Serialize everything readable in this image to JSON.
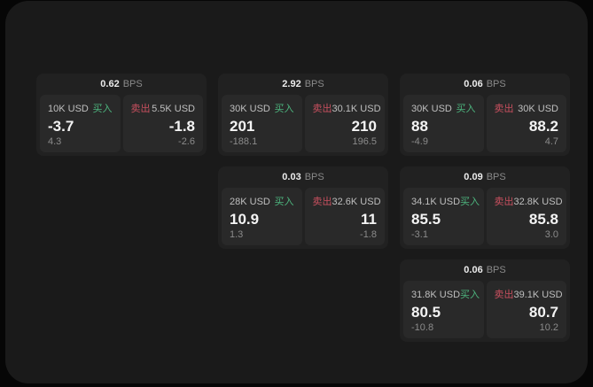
{
  "labels": {
    "buy": "买入",
    "sell": "卖出",
    "bps": "BPS"
  },
  "colors": {
    "backdrop": "#060606",
    "window_bg": "#1a1a1a",
    "card_bg": "#212121",
    "panel_bg": "#292929",
    "buy_green": "#4db57e",
    "sell_red": "#c8505f",
    "value_white": "#f4f4f4",
    "muted_gray": "#8b8b8b"
  },
  "cards": [
    {
      "bps": "0.62",
      "buy": {
        "amount": "10K USD",
        "value": "-3.7",
        "sub": "4.3"
      },
      "sell": {
        "amount": "5.5K USD",
        "value": "-1.8",
        "sub": "-2.6"
      }
    },
    {
      "bps": "2.92",
      "buy": {
        "amount": "30K USD",
        "value": "201",
        "sub": "-188.1"
      },
      "sell": {
        "amount": "30.1K USD",
        "value": "210",
        "sub": "196.5"
      }
    },
    {
      "bps": "0.06",
      "buy": {
        "amount": "30K USD",
        "value": "88",
        "sub": "-4.9"
      },
      "sell": {
        "amount": "30K USD",
        "value": "88.2",
        "sub": "4.7"
      }
    },
    {
      "bps": "0.03",
      "buy": {
        "amount": "28K USD",
        "value": "10.9",
        "sub": "1.3"
      },
      "sell": {
        "amount": "32.6K USD",
        "value": "11",
        "sub": "-1.8"
      }
    },
    {
      "bps": "0.09",
      "buy": {
        "amount": "34.1K USD",
        "value": "85.5",
        "sub": "-3.1"
      },
      "sell": {
        "amount": "32.8K USD",
        "value": "85.8",
        "sub": "3.0"
      }
    },
    {
      "bps": "0.06",
      "buy": {
        "amount": "31.8K USD",
        "value": "80.5",
        "sub": "-10.8"
      },
      "sell": {
        "amount": "39.1K USD",
        "value": "80.7",
        "sub": "10.2"
      }
    }
  ]
}
